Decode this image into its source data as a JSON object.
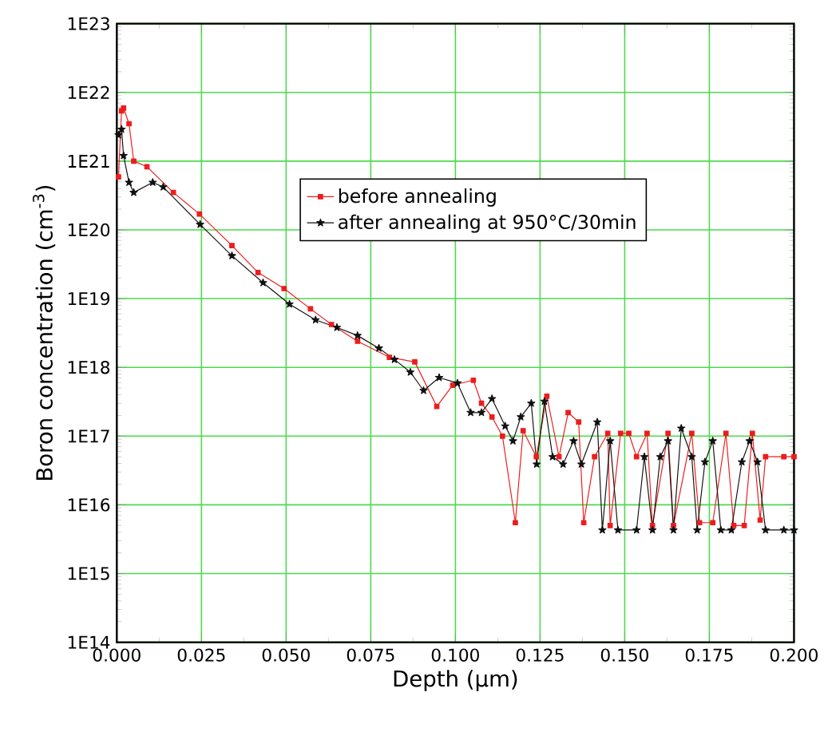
{
  "chart_data": {
    "type": "line",
    "xlabel": "Depth (µm)",
    "ylabel": "Boron concentration (cm$^{-3}$)",
    "log": "y",
    "grid": true,
    "legend": "top right",
    "xlim": [
      0,
      0.2
    ],
    "xticks": [
      {
        "value": 0,
        "label": "0.000"
      },
      {
        "value": 0.025,
        "label": "0.025"
      },
      {
        "value": 0.05,
        "label": "0.050"
      },
      {
        "value": 0.075,
        "label": "0.075"
      },
      {
        "value": 0.1,
        "label": "0.100"
      },
      {
        "value": 0.125,
        "label": "0.125"
      },
      {
        "value": 0.15,
        "label": "0.150"
      },
      {
        "value": 0.175,
        "label": "0.175"
      },
      {
        "value": 0.2,
        "label": "0.200"
      }
    ],
    "ylim": [
      100000000000000.0,
      1e+23
    ],
    "yticks": [
      {
        "value": 100000000000000.0,
        "label": "1E14"
      },
      {
        "value": 1000000000000000.0,
        "label": "1E15"
      },
      {
        "value": 1e+16,
        "label": "1E16"
      },
      {
        "value": 1e+17,
        "label": "1E17"
      },
      {
        "value": 1e+18,
        "label": "1E18"
      },
      {
        "value": 1e+19,
        "label": "1E19"
      },
      {
        "value": 1e+20,
        "label": "1E20"
      },
      {
        "value": 1e+21,
        "label": "1E21"
      },
      {
        "value": 1e+22,
        "label": "1E22"
      },
      {
        "value": 1e+23,
        "label": "1E23"
      }
    ],
    "series": [
      {
        "name": "before annealing",
        "color": "#ee1c1c",
        "marker": "square",
        "x": [
          0.0005,
          0.0014,
          0.002,
          0.0036,
          0.005,
          0.0089,
          0.0167,
          0.0244,
          0.034,
          0.0417,
          0.0494,
          0.0572,
          0.0634,
          0.0711,
          0.0805,
          0.088,
          0.0945,
          0.0992,
          0.1053,
          0.1077,
          0.1108,
          0.1139,
          0.1177,
          0.12,
          0.1239,
          0.127,
          0.1306,
          0.1333,
          0.1364,
          0.1379,
          0.1411,
          0.145,
          0.1457,
          0.1488,
          0.1512,
          0.1535,
          0.1566,
          0.1582,
          0.1628,
          0.1644,
          0.1698,
          0.1721,
          0.176,
          0.1799,
          0.1822,
          0.1853,
          0.1877,
          0.19,
          0.1916,
          0.197,
          0.2
        ],
        "values": [
          5.9e+20,
          5.4e+21,
          5.9e+21,
          3.5e+21,
          1e+21,
          8.3e+20,
          3.5e+20,
          1.7e+20,
          5.9e+19,
          2.4e+19,
          1.4e+19,
          7.1e+18,
          4.2e+18,
          2.4e+18,
          1.4e+18,
          1.2e+18,
          2.7e+17,
          5.5e+17,
          6.5e+17,
          3e+17,
          1.9e+17,
          1e+17,
          5500000000000000.0,
          1.2e+17,
          5e+16,
          3.8e+17,
          5e+16,
          2.2e+17,
          1.6e+17,
          5500000000000000.0,
          5e+16,
          1.1e+17,
          5000000000000000.0,
          1.1e+17,
          1.1e+17,
          5e+16,
          1.1e+17,
          5000000000000000.0,
          1.1e+17,
          5000000000000000.0,
          1.1e+17,
          5500000000000000.0,
          5500000000000000.0,
          1.1e+17,
          5000000000000000.0,
          5000000000000000.0,
          1.1e+17,
          6000000000000000.0,
          5e+16,
          5e+16,
          5e+16
        ]
      },
      {
        "name": "after annealing at 950°C/30min",
        "color": "#111111",
        "marker": "star",
        "x": [
          0.0005,
          0.0014,
          0.002,
          0.0036,
          0.005,
          0.0106,
          0.0137,
          0.0246,
          0.034,
          0.0432,
          0.051,
          0.0587,
          0.065,
          0.0711,
          0.0774,
          0.082,
          0.0867,
          0.0906,
          0.0952,
          0.1006,
          0.1045,
          0.1077,
          0.1108,
          0.1147,
          0.117,
          0.1193,
          0.1224,
          0.124,
          0.1263,
          0.1287,
          0.1318,
          0.1349,
          0.1372,
          0.1419,
          0.1434,
          0.1457,
          0.148,
          0.1535,
          0.1558,
          0.1582,
          0.1605,
          0.1628,
          0.1644,
          0.1667,
          0.1698,
          0.1714,
          0.1737,
          0.176,
          0.1784,
          0.1815,
          0.1846,
          0.1869,
          0.1892,
          0.1916,
          0.197,
          0.2
        ],
        "values": [
          2.4e+21,
          2.9e+21,
          1.2e+21,
          4.9e+20,
          3.5e+20,
          4.9e+20,
          4.2e+20,
          1.2e+20,
          4.2e+19,
          1.7e+19,
          8.3e+18,
          4.9e+18,
          3.8e+18,
          2.9e+18,
          1.9e+18,
          1.3e+18,
          8.5e+17,
          4.6e+17,
          7.1e+17,
          5.9e+17,
          2.2e+17,
          2.2e+17,
          3.5e+17,
          1.4e+17,
          8.5e+16,
          1.9e+17,
          3e+17,
          3.9e+16,
          3.2e+17,
          5e+16,
          3.9e+16,
          8.5e+16,
          3.9e+16,
          1.6e+17,
          4300000000000000.0,
          8.5e+16,
          4300000000000000.0,
          4300000000000000.0,
          5e+16,
          4300000000000000.0,
          5e+16,
          8.5e+16,
          4300000000000000.0,
          1.3e+17,
          5e+16,
          4300000000000000.0,
          4.2e+16,
          8.5e+16,
          4300000000000000.0,
          4300000000000000.0,
          4.2e+16,
          8.5e+16,
          4.2e+16,
          4300000000000000.0,
          4300000000000000.0,
          4300000000000000.0
        ]
      }
    ]
  }
}
